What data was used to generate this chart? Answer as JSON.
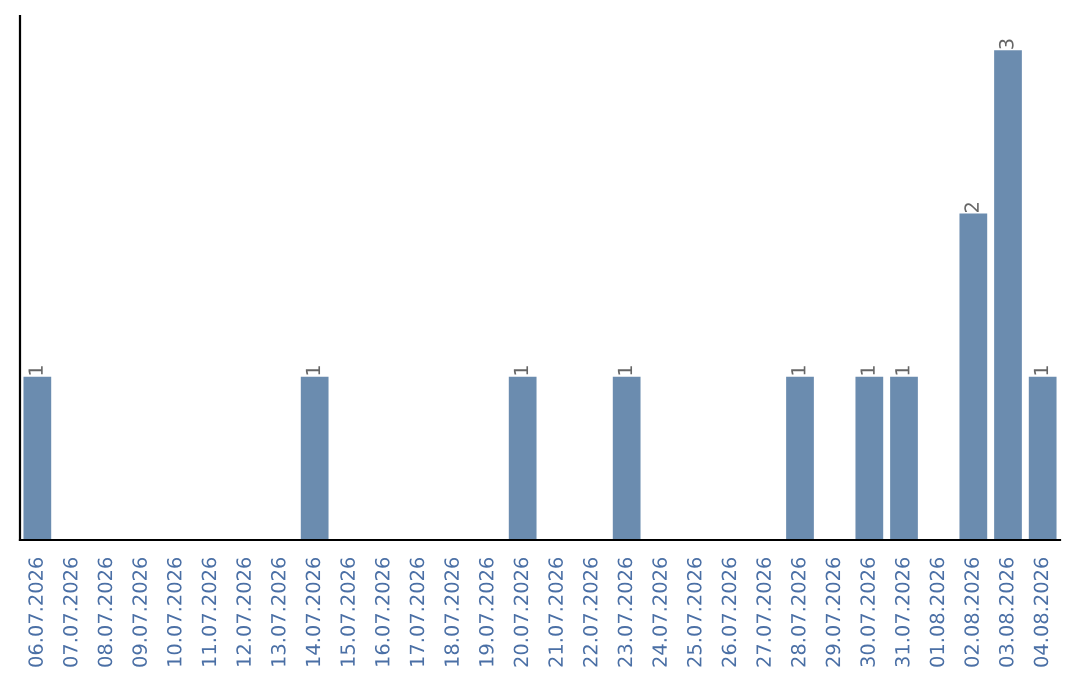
{
  "chart_data": {
    "type": "bar",
    "categories": [
      "06.07.2026",
      "07.07.2026",
      "08.07.2026",
      "09.07.2026",
      "10.07.2026",
      "11.07.2026",
      "12.07.2026",
      "13.07.2026",
      "14.07.2026",
      "15.07.2026",
      "16.07.2026",
      "17.07.2026",
      "18.07.2026",
      "19.07.2026",
      "20.07.2026",
      "21.07.2026",
      "22.07.2026",
      "23.07.2026",
      "24.07.2026",
      "25.07.2026",
      "26.07.2026",
      "27.07.2026",
      "28.07.2026",
      "29.07.2026",
      "30.07.2026",
      "31.07.2026",
      "01.08.2026",
      "02.08.2026",
      "03.08.2026",
      "04.08.2026"
    ],
    "values": [
      1,
      0,
      0,
      0,
      0,
      0,
      0,
      0,
      1,
      0,
      0,
      0,
      0,
      0,
      1,
      0,
      0,
      1,
      0,
      0,
      0,
      0,
      1,
      0,
      1,
      1,
      0,
      2,
      3,
      1
    ],
    "value_labels": [
      "1",
      null,
      null,
      null,
      null,
      null,
      null,
      null,
      "1",
      null,
      null,
      null,
      null,
      null,
      "1",
      null,
      null,
      "1",
      null,
      null,
      null,
      null,
      "1",
      null,
      "1",
      "1",
      null,
      "2",
      "3",
      "1"
    ],
    "color": "#6b8caf",
    "grid": false
  }
}
